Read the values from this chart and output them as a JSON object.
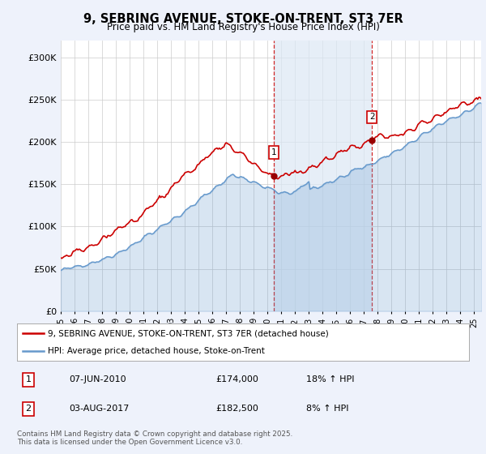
{
  "title": "9, SEBRING AVENUE, STOKE-ON-TRENT, ST3 7ER",
  "subtitle": "Price paid vs. HM Land Registry's House Price Index (HPI)",
  "background_color": "#eef2fb",
  "plot_bg_color": "#ffffff",
  "line1_color": "#cc0000",
  "line2_color": "#6699cc",
  "shade_color": "#dce8f5",
  "ylim": [
    0,
    320000
  ],
  "yticks": [
    0,
    50000,
    100000,
    150000,
    200000,
    250000,
    300000
  ],
  "ytick_labels": [
    "£0",
    "£50K",
    "£100K",
    "£150K",
    "£200K",
    "£250K",
    "£300K"
  ],
  "t1": 2010.458,
  "t2": 2017.583,
  "transaction1_price": 174000,
  "transaction2_price": 182500,
  "legend1_label": "9, SEBRING AVENUE, STOKE-ON-TRENT, ST3 7ER (detached house)",
  "legend2_label": "HPI: Average price, detached house, Stoke-on-Trent",
  "footer": "Contains HM Land Registry data © Crown copyright and database right 2025.\nThis data is licensed under the Open Government Licence v3.0.",
  "xstart": 1995.0,
  "xend": 2025.5
}
